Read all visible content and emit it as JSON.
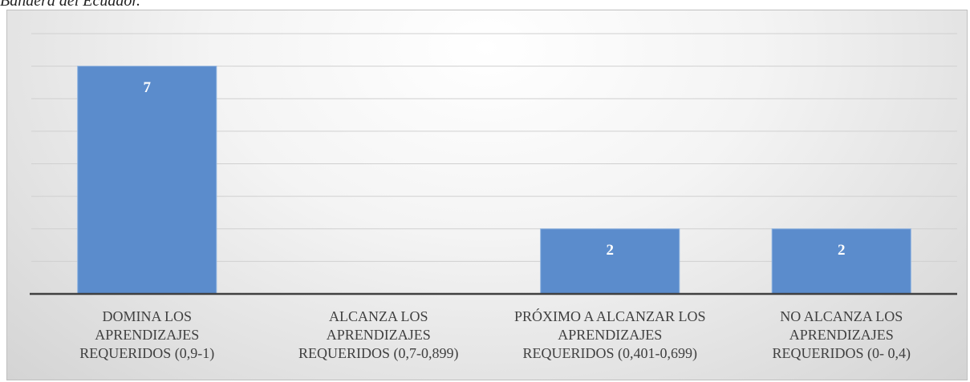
{
  "caption": "Bandera del Ecuador.",
  "chart_data": {
    "type": "bar",
    "categories": [
      "DOMINA LOS\nAPRENDIZAJES\nREQUERIDOS (0,9-1)",
      "ALCANZA LOS\nAPRENDIZAJES\nREQUERIDOS (0,7-0,899)",
      "PRÓXIMO A ALCANZAR LOS\nAPRENDIZAJES\nREQUERIDOS (0,401-0,699)",
      "NO ALCANZA LOS\nAPRENDIZAJES\nREQUERIDOS (0- 0,4)"
    ],
    "values": [
      7,
      0,
      2,
      2
    ],
    "color": "#5b8ccc",
    "ylim": [
      0,
      8
    ],
    "yticks": [
      0,
      1,
      2,
      3,
      4,
      5,
      6,
      7,
      8
    ],
    "grid": true
  }
}
